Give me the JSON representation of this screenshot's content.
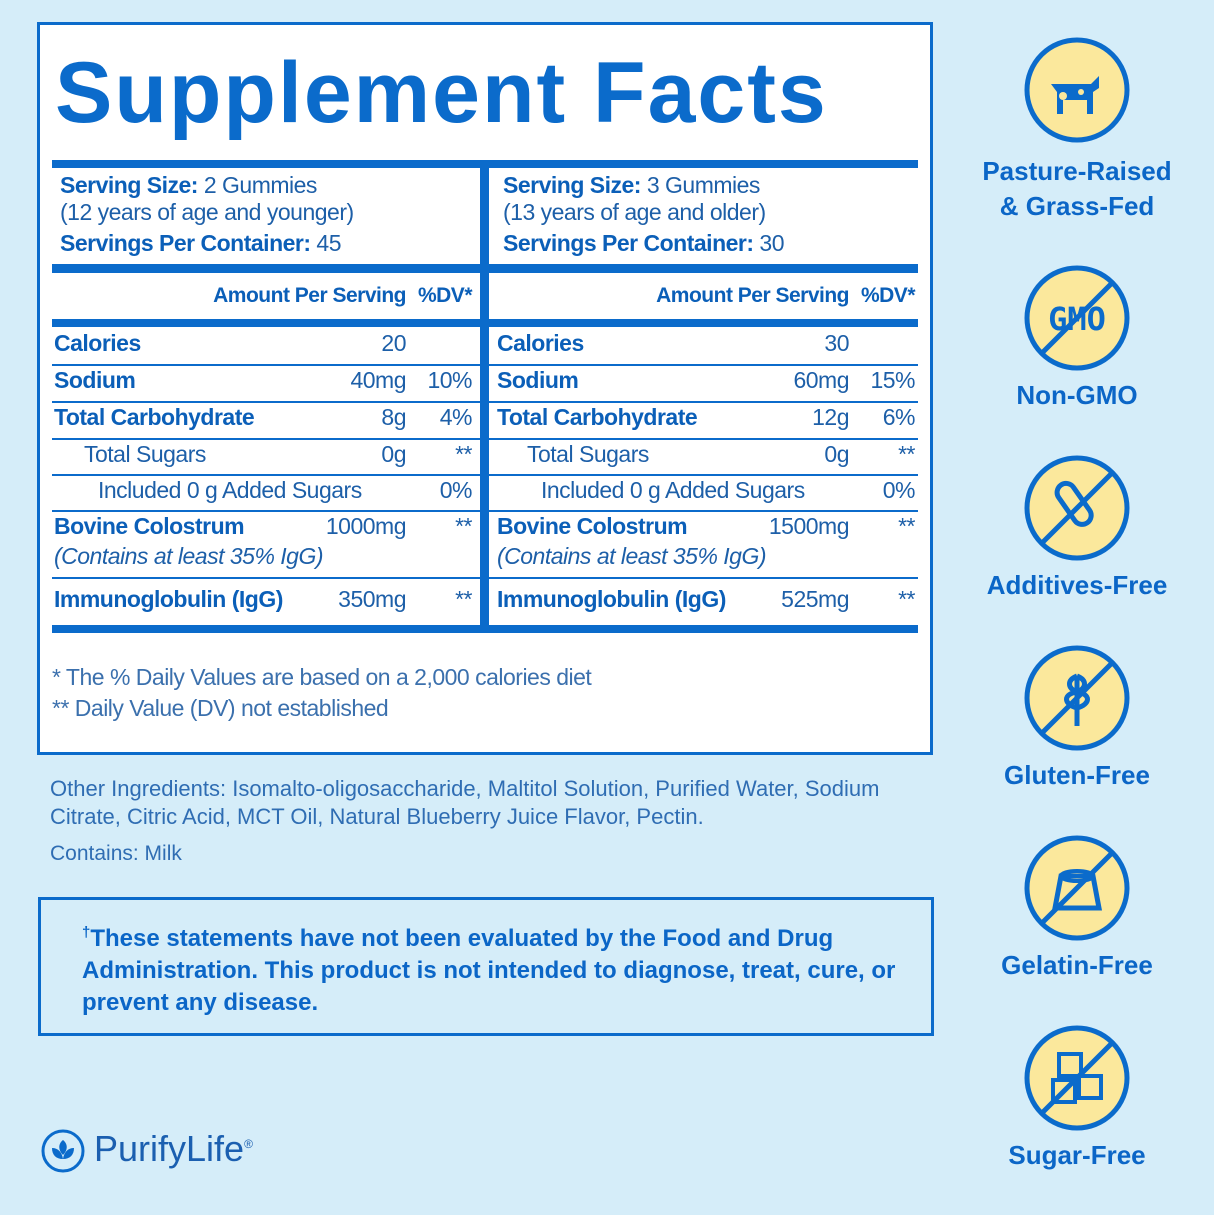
{
  "title": "Supplement Facts",
  "panels": [
    {
      "serving_size_label": "Serving Size:",
      "serving_size": "2 Gummies",
      "age": "(12 years of age and younger)",
      "servings_label": "Servings Per Container:",
      "servings": "45",
      "amount_header": "Amount Per Serving",
      "dv_header": "%DV*",
      "rows": [
        {
          "name": "Calories",
          "amount": "20"
        },
        {
          "name": "Sodium",
          "amount": "40mg",
          "dv": "10%"
        },
        {
          "name": "Total Carbohydrate",
          "amount": "8g",
          "dv": "4%"
        },
        {
          "name": "Total Sugars",
          "amount": "0g",
          "dv": "**"
        },
        {
          "name": "Included 0 g Added Sugars",
          "dv": "0%"
        },
        {
          "name": "Bovine Colostrum",
          "note": "(Contains at least 35% IgG)",
          "amount": "1000mg",
          "dv": "**"
        },
        {
          "name": "Immunoglobulin (IgG)",
          "amount": "350mg",
          "dv": "**"
        }
      ]
    },
    {
      "serving_size_label": "Serving Size:",
      "serving_size": "3 Gummies",
      "age": "(13 years of age and older)",
      "servings_label": "Servings Per Container:",
      "servings": "30",
      "amount_header": "Amount Per Serving",
      "dv_header": "%DV*",
      "rows": [
        {
          "name": "Calories",
          "amount": "30"
        },
        {
          "name": "Sodium",
          "amount": "60mg",
          "dv": "15%"
        },
        {
          "name": "Total Carbohydrate",
          "amount": "12g",
          "dv": "6%"
        },
        {
          "name": "Total Sugars",
          "amount": "0g",
          "dv": "**"
        },
        {
          "name": "Included 0 g Added Sugars",
          "dv": "0%"
        },
        {
          "name": "Bovine Colostrum",
          "note": "(Contains at least 35% IgG)",
          "amount": "1500mg",
          "dv": "**"
        },
        {
          "name": "Immunoglobulin (IgG)",
          "amount": "525mg",
          "dv": "**"
        }
      ]
    }
  ],
  "footnotes": [
    "* The % Daily Values are based on a 2,000 calories diet",
    "** Daily Value (DV) not established"
  ],
  "other_ingredients": "Other Ingredients: Isomalto-oligosaccharide, Maltitol Solution, Purified Water, Sodium Citrate, Citric Acid, MCT Oil, Natural Blueberry Juice Flavor, Pectin.",
  "contains": "Contains: Milk",
  "disclaimer_mark": "†",
  "disclaimer": "These statements have not been evaluated by the Food and Drug Administration. This product is not intended to diagnose, treat, cure, or prevent any disease.",
  "brand": "PurifyLife",
  "brand_mark": "®",
  "badges": [
    {
      "lines": [
        "Pasture-Raised",
        "& Grass-Fed"
      ]
    },
    {
      "icon_text": "GMO",
      "lines": [
        "Non-GMO"
      ]
    },
    {
      "lines": [
        "Additives-Free"
      ]
    },
    {
      "lines": [
        "Gluten-Free"
      ]
    },
    {
      "lines": [
        "Gelatin-Free"
      ]
    },
    {
      "lines": [
        "Sugar-Free"
      ]
    }
  ]
}
